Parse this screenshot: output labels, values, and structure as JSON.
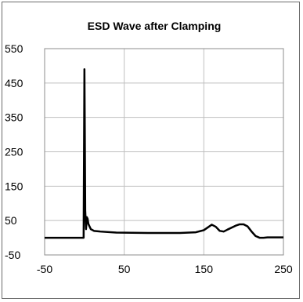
{
  "chart_data": {
    "type": "line",
    "title": "ESD Wave after Clamping",
    "xlabel": "",
    "ylabel": "",
    "xlim": [
      -50,
      250
    ],
    "ylim": [
      -50,
      550
    ],
    "x_ticks": [
      -50,
      50,
      150,
      250
    ],
    "y_ticks": [
      550,
      450,
      350,
      250,
      150,
      50,
      -50
    ],
    "x_tick_labels": [
      "-50",
      "50",
      "150",
      "250"
    ],
    "y_tick_labels": [
      "550",
      "450",
      "350",
      "250",
      "150",
      "50",
      "-50"
    ],
    "grid": true,
    "series": [
      {
        "color": "#000000",
        "x": [
          -50,
          -2,
          -1,
          0,
          0.5,
          1,
          2,
          3,
          4,
          5,
          8,
          12,
          20,
          40,
          80,
          120,
          140,
          150,
          155,
          160,
          165,
          170,
          175,
          180,
          190,
          195,
          200,
          205,
          210,
          215,
          220,
          225,
          230,
          240,
          250
        ],
        "y": [
          0,
          0,
          0,
          490,
          300,
          80,
          25,
          60,
          55,
          40,
          25,
          20,
          18,
          15,
          14,
          14,
          16,
          22,
          30,
          38,
          32,
          20,
          18,
          24,
          35,
          39,
          39,
          33,
          18,
          5,
          0,
          0,
          1,
          1,
          1
        ]
      }
    ]
  }
}
